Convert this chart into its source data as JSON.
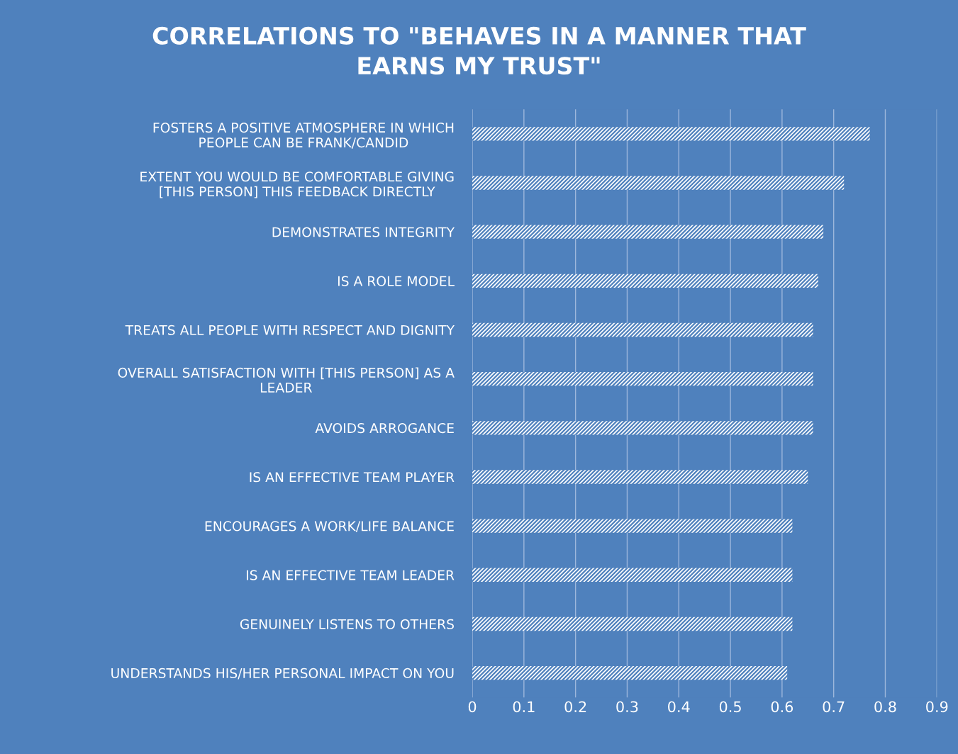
{
  "chart_data": {
    "type": "bar",
    "orientation": "horizontal",
    "title": "CORRELATIONS TO \"BEHAVES IN A MANNER THAT\nEARNS MY TRUST\"",
    "categories": [
      "FOSTERS A POSITIVE ATMOSPHERE IN WHICH\nPEOPLE CAN BE FRANK/CANDID",
      "EXTENT YOU WOULD BE COMFORTABLE GIVING\n[THIS PERSON] THIS FEEDBACK DIRECTLY",
      "DEMONSTRATES INTEGRITY",
      "IS A ROLE MODEL",
      "TREATS ALL PEOPLE WITH RESPECT AND DIGNITY",
      "OVERALL SATISFACTION WITH [THIS PERSON] AS A\nLEADER",
      "AVOIDS ARROGANCE",
      "IS AN EFFECTIVE TEAM PLAYER",
      "ENCOURAGES A WORK/LIFE BALANCE",
      "IS AN EFFECTIVE TEAM LEADER",
      "GENUINELY LISTENS TO OTHERS",
      "UNDERSTANDS HIS/HER PERSONAL IMPACT ON YOU"
    ],
    "values": [
      0.77,
      0.72,
      0.68,
      0.67,
      0.66,
      0.66,
      0.66,
      0.65,
      0.62,
      0.62,
      0.62,
      0.61
    ],
    "color": "#ffffff",
    "xlim": [
      0,
      0.9
    ],
    "xticks": [
      0,
      0.1,
      0.2,
      0.3,
      0.4,
      0.5,
      0.6,
      0.7,
      0.8,
      0.9
    ],
    "grid": "x"
  }
}
